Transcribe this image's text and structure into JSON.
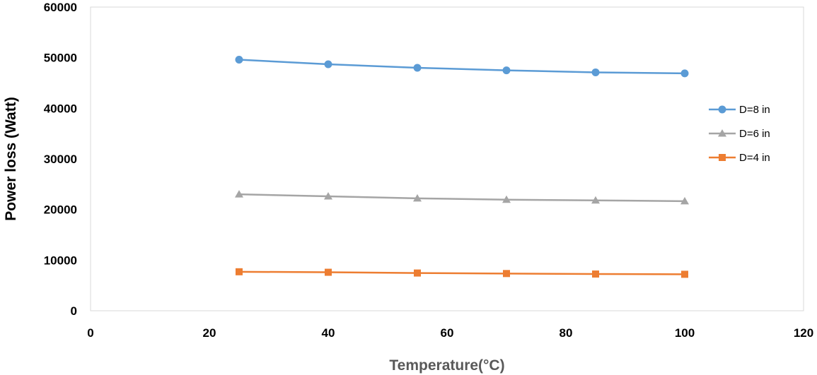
{
  "chart_data": {
    "type": "line",
    "title": "",
    "xlabel": "Temperature(°C)",
    "ylabel": "Power loss (Watt)",
    "xlim": [
      0,
      120
    ],
    "ylim": [
      0,
      60000
    ],
    "x_ticks": [
      "0",
      "20",
      "40",
      "60",
      "80",
      "100",
      "120"
    ],
    "y_ticks": [
      "0",
      "10000",
      "20000",
      "30000",
      "40000",
      "50000",
      "60000"
    ],
    "grid": false,
    "legend_position": "right",
    "x": [
      25,
      40,
      55,
      70,
      85,
      100
    ],
    "series": [
      {
        "name": "D=8 in",
        "color": "#5B9BD5",
        "marker": "circle",
        "values": [
          49600,
          48700,
          48000,
          47500,
          47100,
          46900
        ]
      },
      {
        "name": "D=6 in",
        "color": "#A5A5A5",
        "marker": "triangle",
        "values": [
          23000,
          22600,
          22200,
          21950,
          21800,
          21650
        ]
      },
      {
        "name": "D=4 in",
        "color": "#ED7D31",
        "marker": "square",
        "values": [
          7700,
          7600,
          7450,
          7350,
          7250,
          7200
        ]
      }
    ]
  }
}
